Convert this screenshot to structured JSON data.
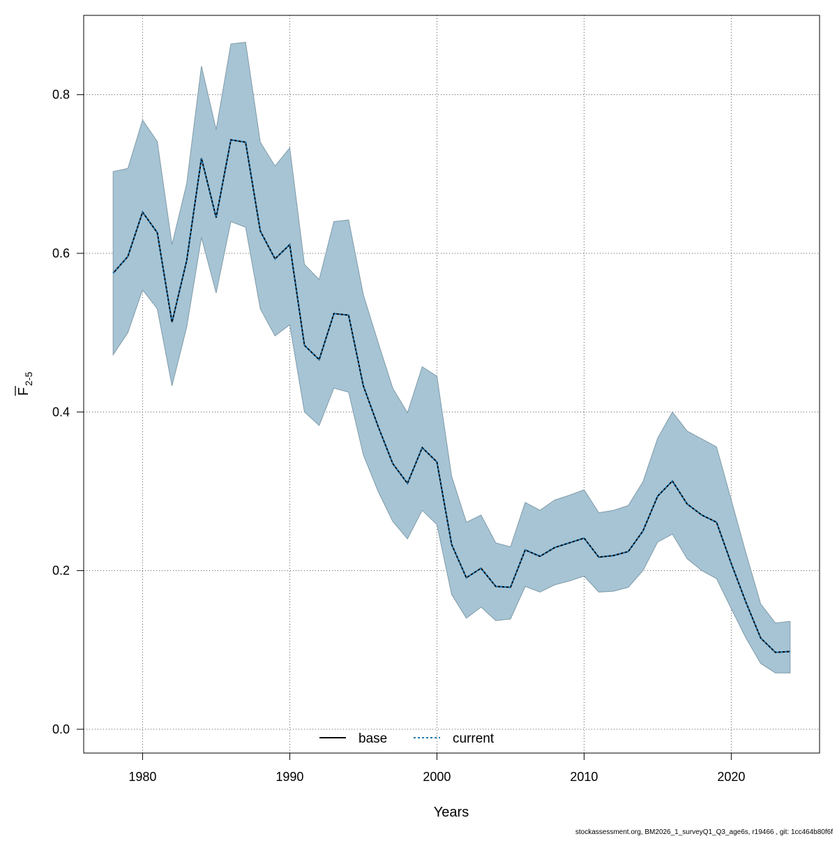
{
  "chart_data": {
    "type": "line",
    "xlabel": "Years",
    "ylabel_main": "F",
    "ylabel_sub": "2-5",
    "xlim": [
      1976,
      2026
    ],
    "ylim": [
      -0.03,
      0.9
    ],
    "xticks": [
      1980,
      1990,
      2000,
      2010,
      2020
    ],
    "yticks": [
      0.0,
      0.2,
      0.4,
      0.6,
      0.8
    ],
    "xtick_labels": [
      "1980",
      "1990",
      "2000",
      "2010",
      "2020"
    ],
    "ytick_labels": [
      "0.0",
      "0.2",
      "0.4",
      "0.6",
      "0.8"
    ],
    "grid": true,
    "legend_position": "bottom-center",
    "x": [
      1978,
      1979,
      1980,
      1981,
      1982,
      1983,
      1984,
      1985,
      1986,
      1987,
      1988,
      1989,
      1990,
      1991,
      1992,
      1993,
      1994,
      1995,
      1996,
      1997,
      1998,
      1999,
      2000,
      2001,
      2002,
      2003,
      2004,
      2005,
      2006,
      2007,
      2008,
      2009,
      2010,
      2011,
      2012,
      2013,
      2014,
      2015,
      2016,
      2017,
      2018,
      2019,
      2020,
      2021,
      2022,
      2023,
      2024
    ],
    "band": {
      "upper": [
        0.703,
        0.707,
        0.768,
        0.741,
        0.611,
        0.688,
        0.836,
        0.756,
        0.864,
        0.866,
        0.74,
        0.71,
        0.733,
        0.586,
        0.567,
        0.64,
        0.642,
        0.548,
        0.488,
        0.43,
        0.399,
        0.457,
        0.445,
        0.319,
        0.261,
        0.27,
        0.235,
        0.23,
        0.286,
        0.276,
        0.289,
        0.295,
        0.302,
        0.273,
        0.276,
        0.282,
        0.312,
        0.367,
        0.4,
        0.376,
        0.366,
        0.356,
        0.289,
        0.222,
        0.158,
        0.134,
        0.136
      ],
      "lower": [
        0.472,
        0.5,
        0.554,
        0.53,
        0.433,
        0.507,
        0.62,
        0.55,
        0.64,
        0.633,
        0.53,
        0.496,
        0.51,
        0.4,
        0.383,
        0.43,
        0.425,
        0.346,
        0.3,
        0.262,
        0.24,
        0.276,
        0.258,
        0.17,
        0.14,
        0.154,
        0.137,
        0.139,
        0.18,
        0.173,
        0.182,
        0.187,
        0.193,
        0.173,
        0.174,
        0.179,
        0.2,
        0.236,
        0.246,
        0.215,
        0.2,
        0.19,
        0.152,
        0.115,
        0.083,
        0.071,
        0.071
      ]
    },
    "series": [
      {
        "name": "base",
        "style": "solid",
        "color": "#000000",
        "values": [
          0.575,
          0.596,
          0.652,
          0.626,
          0.513,
          0.591,
          0.72,
          0.645,
          0.743,
          0.74,
          0.628,
          0.593,
          0.611,
          0.484,
          0.466,
          0.524,
          0.522,
          0.433,
          0.382,
          0.335,
          0.31,
          0.355,
          0.337,
          0.233,
          0.191,
          0.203,
          0.18,
          0.179,
          0.226,
          0.218,
          0.229,
          0.235,
          0.241,
          0.217,
          0.219,
          0.224,
          0.25,
          0.294,
          0.313,
          0.284,
          0.27,
          0.261,
          0.209,
          0.16,
          0.115,
          0.097,
          0.098
        ]
      },
      {
        "name": "current",
        "style": "dotted",
        "color": "#1f78b4",
        "values": [
          0.575,
          0.596,
          0.652,
          0.626,
          0.513,
          0.591,
          0.72,
          0.645,
          0.743,
          0.74,
          0.628,
          0.593,
          0.611,
          0.484,
          0.466,
          0.524,
          0.522,
          0.433,
          0.382,
          0.335,
          0.31,
          0.355,
          0.337,
          0.233,
          0.191,
          0.203,
          0.18,
          0.179,
          0.226,
          0.218,
          0.229,
          0.235,
          0.241,
          0.217,
          0.219,
          0.224,
          0.25,
          0.294,
          0.313,
          0.284,
          0.27,
          0.261,
          0.209,
          0.16,
          0.115,
          0.097,
          0.098
        ]
      }
    ],
    "colors": {
      "band_fill": "#a6c4d4",
      "band_stroke": "#7f9aa8",
      "grid": "#555555",
      "axis": "#000000"
    }
  },
  "footer": "stockassessment.org, BM2026_1_surveyQ1_Q3_age6s, r19466 , git: 1cc464b80f6f"
}
